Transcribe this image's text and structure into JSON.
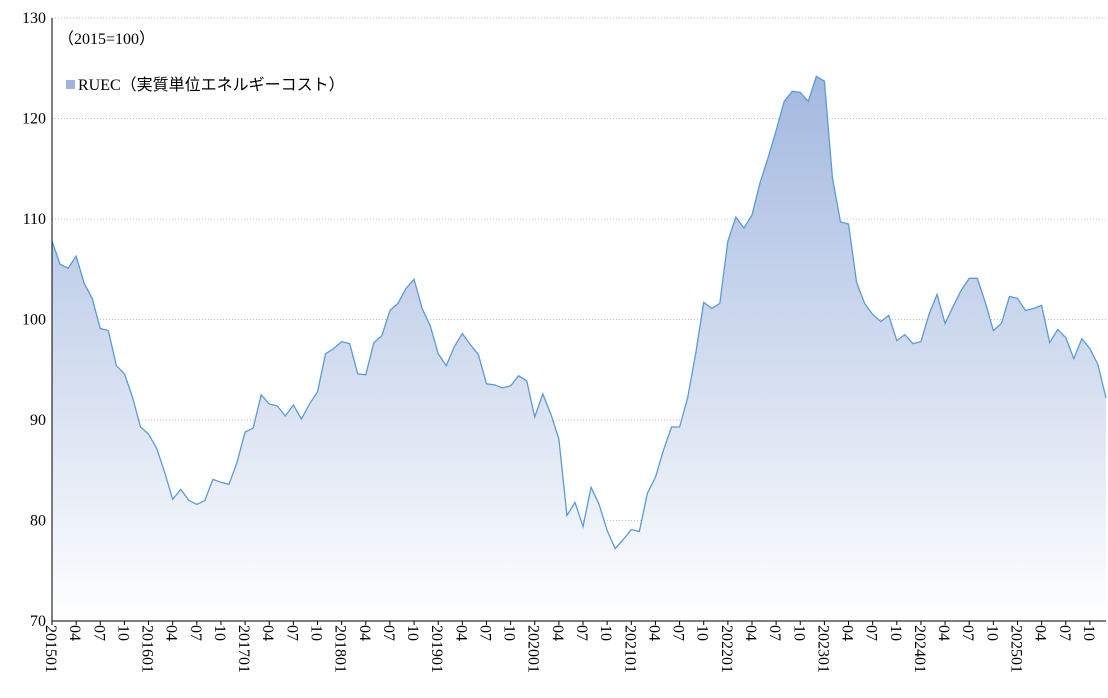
{
  "chart_data": {
    "type": "area",
    "annotation": "（2015=100）",
    "categories": [
      "201501",
      null,
      null,
      "04",
      null,
      null,
      "07",
      null,
      null,
      "10",
      null,
      null,
      "201601",
      null,
      null,
      "04",
      null,
      null,
      "07",
      null,
      null,
      "10",
      null,
      null,
      "201701",
      null,
      null,
      "04",
      null,
      null,
      "07",
      null,
      null,
      "10",
      null,
      null,
      "201801",
      null,
      null,
      "04",
      null,
      null,
      "07",
      null,
      null,
      "10",
      null,
      null,
      "201901",
      null,
      null,
      "04",
      null,
      null,
      "07",
      null,
      null,
      "10",
      null,
      null,
      "202001",
      null,
      null,
      "04",
      null,
      null,
      "07",
      null,
      null,
      "10",
      null,
      null,
      "202101",
      null,
      null,
      "04",
      null,
      null,
      "07",
      null,
      null,
      "10",
      null,
      null,
      "202201",
      null,
      null,
      "04",
      null,
      null,
      "07",
      null,
      null,
      "10",
      null,
      null,
      "202301",
      null,
      null,
      "04",
      null,
      null,
      "07",
      null,
      null,
      "10",
      null,
      null,
      "202401",
      null,
      null,
      "04",
      null,
      null,
      "07",
      null,
      null,
      "10",
      null,
      null,
      "202501",
      null,
      null,
      "04",
      null,
      null,
      "07",
      null,
      null,
      "10",
      null,
      null
    ],
    "series": [
      {
        "name": "RUEC（実質単位エネルギーコスト）",
        "color": "#5b9bd5",
        "fill": "#9fb5de",
        "values": [
          107.8,
          105.5,
          105.1,
          106.3,
          103.6,
          102.1,
          99.1,
          98.9,
          95.4,
          94.6,
          92.3,
          89.3,
          88.6,
          87.2,
          84.8,
          82.1,
          83.1,
          82.0,
          81.6,
          82.0,
          84.1,
          83.8,
          83.6,
          85.8,
          88.8,
          89.2,
          92.5,
          91.6,
          91.4,
          90.4,
          91.5,
          90.1,
          91.6,
          92.8,
          96.6,
          97.1,
          97.8,
          97.6,
          94.6,
          94.5,
          97.7,
          98.4,
          100.9,
          101.6,
          103.1,
          104.0,
          101.1,
          99.4,
          96.6,
          95.4,
          97.3,
          98.6,
          97.5,
          96.5,
          93.6,
          93.5,
          93.2,
          93.4,
          94.4,
          93.9,
          90.3,
          92.6,
          90.6,
          88.1,
          80.5,
          81.8,
          79.4,
          83.3,
          81.6,
          79.0,
          77.2,
          78.1,
          79.1,
          78.9,
          82.7,
          84.3,
          87.0,
          89.3,
          89.3,
          92.2,
          96.6,
          101.7,
          101.1,
          101.6,
          107.8,
          110.2,
          109.1,
          110.4,
          113.6,
          116.1,
          118.8,
          121.7,
          122.7,
          122.6,
          121.7,
          124.2,
          123.7,
          114.1,
          109.7,
          109.5,
          103.7,
          101.6,
          100.5,
          99.8,
          100.4,
          97.9,
          98.5,
          97.6,
          97.8,
          100.5,
          102.5,
          99.6,
          101.3,
          102.9,
          104.1,
          104.1,
          101.7,
          98.9,
          99.6,
          102.3,
          102.1,
          100.9,
          101.1,
          101.4,
          97.7,
          99.0,
          98.2,
          96.1,
          98.1,
          97.1,
          95.5,
          92.2
        ]
      }
    ],
    "ylim": [
      70,
      130
    ],
    "yticks": [
      70,
      80,
      90,
      100,
      110,
      120,
      130
    ],
    "grid": true
  }
}
